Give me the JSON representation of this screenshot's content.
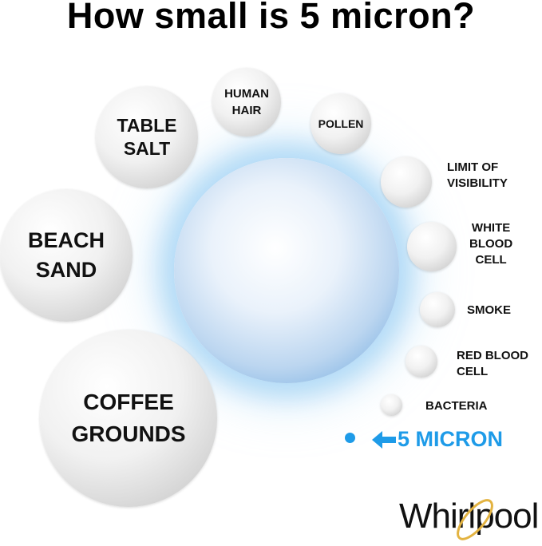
{
  "title": "How small is 5 micron?",
  "particles": [
    {
      "name": "human-hair",
      "line1": "HUMAN",
      "line2": "HAIR"
    },
    {
      "name": "table-salt",
      "line1": "TABLE",
      "line2": "SALT"
    },
    {
      "name": "pollen",
      "line1": "POLLEN"
    },
    {
      "name": "limit-of-visibility",
      "line1": "LIMIT OF",
      "line2": "VISIBILITY"
    },
    {
      "name": "white-blood-cell",
      "line1": "WHITE",
      "line2": "BLOOD",
      "line3": "CELL"
    },
    {
      "name": "smoke",
      "line1": "SMOKE"
    },
    {
      "name": "red-blood-cell",
      "line1": "RED BLOOD",
      "line2": "CELL"
    },
    {
      "name": "bacteria",
      "line1": "BACTERIA"
    },
    {
      "name": "beach-sand",
      "line1": "BEACH",
      "line2": "SAND"
    },
    {
      "name": "coffee-grounds",
      "line1": "COFFEE",
      "line2": "GROUNDS"
    }
  ],
  "micron_label": "5 MICRON",
  "micron_icon": "arrow-left-icon",
  "accent_color": "#1e9be8",
  "brand": "Whirlpool"
}
